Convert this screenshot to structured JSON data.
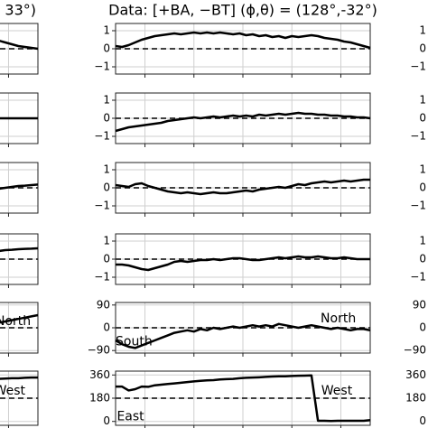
{
  "chart_data": [
    {
      "type": "line",
      "title": "33°)",
      "xlim": [
        0,
        39
      ],
      "xticks": [
        4.5,
        12,
        19.5,
        27,
        34.5
      ],
      "ylim": [
        -1.4,
        1.4
      ],
      "yticks": [
        1,
        0,
        {
          "value": -1,
          "label": "−1"
        }
      ],
      "grid": true,
      "reference": 0,
      "x": [
        33,
        34,
        35,
        36,
        37,
        38,
        39
      ],
      "values": [
        0.45,
        0.35,
        0.25,
        0.15,
        0.1,
        0.05,
        0
      ]
    },
    {
      "type": "line",
      "xlim": [
        0,
        39
      ],
      "xticks": [
        4.5,
        12,
        19.5,
        27,
        34.5
      ],
      "ylim": [
        -1.4,
        1.4
      ],
      "yticks": [
        1,
        0,
        {
          "value": -1,
          "label": "−1"
        }
      ],
      "grid": true,
      "reference": 0,
      "x": [
        33,
        34,
        35,
        36,
        37,
        38,
        39
      ],
      "values": [
        0,
        0,
        0,
        0,
        0,
        0,
        0
      ]
    },
    {
      "type": "line",
      "xlim": [
        0,
        39
      ],
      "xticks": [
        4.5,
        12,
        19.5,
        27,
        34.5
      ],
      "ylim": [
        -1.4,
        1.4
      ],
      "yticks": [
        1,
        0,
        {
          "value": -1,
          "label": "−1"
        }
      ],
      "grid": true,
      "reference": 0,
      "x": [
        33,
        34,
        35,
        36,
        37,
        38,
        39
      ],
      "values": [
        -0.05,
        0,
        0.05,
        0.1,
        0.12,
        0.15,
        0.18
      ]
    },
    {
      "type": "line",
      "xlim": [
        0,
        39
      ],
      "xticks": [
        4.5,
        12,
        19.5,
        27,
        34.5
      ],
      "ylim": [
        -1.4,
        1.4
      ],
      "yticks": [
        1,
        0,
        {
          "value": -1,
          "label": "−1"
        }
      ],
      "grid": true,
      "reference": 0,
      "x": [
        33,
        34,
        35,
        36,
        37,
        38,
        39
      ],
      "values": [
        0.45,
        0.5,
        0.52,
        0.55,
        0.57,
        0.58,
        0.6
      ]
    },
    {
      "type": "line",
      "xlim": [
        0,
        39
      ],
      "xticks": [
        4.5,
        12,
        19.5,
        27,
        34.5
      ],
      "ylim": [
        -100,
        100
      ],
      "yticks": [
        90,
        0,
        {
          "value": -90,
          "label": "−90"
        }
      ],
      "grid": true,
      "reference": 0,
      "x": [
        33,
        34,
        35,
        36,
        37,
        38,
        39
      ],
      "values": [
        20,
        25,
        30,
        35,
        40,
        45,
        50
      ],
      "annotations": [
        {
          "text": "North",
          "x": 32.5,
          "y": 25
        }
      ]
    },
    {
      "type": "line",
      "xlim": [
        0,
        39
      ],
      "xticks": [
        4.5,
        12,
        19.5,
        27,
        34.5
      ],
      "ylim": [
        -30,
        390
      ],
      "yticks": [
        360,
        180,
        0
      ],
      "grid": true,
      "reference": 180,
      "x": [
        33,
        34,
        35,
        36,
        37,
        38,
        39
      ],
      "values": [
        330,
        332,
        335,
        335,
        338,
        340,
        340
      ],
      "annotations": [
        {
          "text": "West",
          "x": 32.3,
          "y": 235
        }
      ]
    },
    {
      "type": "line",
      "title": "Data: [+BA, −BT] (ϕ,θ) = (128°,-32°)",
      "xlim": [
        0,
        39
      ],
      "xticks": [
        4.5,
        12,
        19.5,
        27,
        34.5
      ],
      "ylim": [
        -1.4,
        1.4
      ],
      "yticks": [
        1,
        0,
        {
          "value": -1,
          "label": "−1"
        }
      ],
      "grid": true,
      "reference": 0,
      "values": [
        0.15,
        0.1,
        0.2,
        0.35,
        0.5,
        0.6,
        0.7,
        0.75,
        0.8,
        0.85,
        0.8,
        0.85,
        0.9,
        0.85,
        0.9,
        0.85,
        0.9,
        0.85,
        0.8,
        0.85,
        0.75,
        0.8,
        0.7,
        0.75,
        0.65,
        0.7,
        0.6,
        0.7,
        0.65,
        0.7,
        0.75,
        0.7,
        0.6,
        0.55,
        0.5,
        0.4,
        0.35,
        0.25,
        0.15,
        0.05
      ]
    },
    {
      "type": "line",
      "xlim": [
        0,
        39
      ],
      "xticks": [
        4.5,
        12,
        19.5,
        27,
        34.5
      ],
      "ylim": [
        -1.4,
        1.4
      ],
      "yticks": [
        1,
        0,
        {
          "value": -1,
          "label": "−1"
        }
      ],
      "grid": true,
      "reference": 0,
      "values": [
        -0.7,
        -0.6,
        -0.5,
        -0.45,
        -0.4,
        -0.35,
        -0.3,
        -0.25,
        -0.15,
        -0.1,
        -0.05,
        0,
        0.05,
        0,
        0.05,
        0.1,
        0.05,
        0.1,
        0.15,
        0.1,
        0.15,
        0.1,
        0.2,
        0.15,
        0.2,
        0.25,
        0.2,
        0.25,
        0.3,
        0.25,
        0.25,
        0.2,
        0.2,
        0.15,
        0.15,
        0.1,
        0.1,
        0.05,
        0.05,
        0
      ]
    },
    {
      "type": "line",
      "xlim": [
        0,
        39
      ],
      "xticks": [
        4.5,
        12,
        19.5,
        27,
        34.5
      ],
      "ylim": [
        -1.4,
        1.4
      ],
      "yticks": [
        1,
        0,
        {
          "value": -1,
          "label": "−1"
        }
      ],
      "grid": true,
      "reference": 0,
      "values": [
        0.15,
        0.1,
        0.05,
        0.2,
        0.25,
        0.1,
        0,
        -0.1,
        -0.2,
        -0.25,
        -0.3,
        -0.25,
        -0.3,
        -0.35,
        -0.3,
        -0.25,
        -0.3,
        -0.3,
        -0.25,
        -0.2,
        -0.15,
        -0.2,
        -0.1,
        -0.05,
        0,
        0.05,
        0,
        0.1,
        0.2,
        0.15,
        0.25,
        0.3,
        0.35,
        0.3,
        0.35,
        0.4,
        0.35,
        0.4,
        0.45,
        0.45
      ]
    },
    {
      "type": "line",
      "xlim": [
        0,
        39
      ],
      "xticks": [
        4.5,
        12,
        19.5,
        27,
        34.5
      ],
      "ylim": [
        -1.4,
        1.4
      ],
      "yticks": [
        1,
        0,
        {
          "value": -1,
          "label": "−1"
        }
      ],
      "grid": true,
      "reference": 0,
      "values": [
        -0.3,
        -0.3,
        -0.35,
        -0.45,
        -0.55,
        -0.6,
        -0.5,
        -0.4,
        -0.3,
        -0.15,
        -0.1,
        -0.15,
        -0.1,
        -0.05,
        -0.05,
        0,
        -0.05,
        0,
        0.05,
        0.05,
        0,
        -0.05,
        -0.05,
        0,
        0.05,
        0.1,
        0.05,
        0.1,
        0.15,
        0.1,
        0.1,
        0.15,
        0.1,
        0.05,
        0.05,
        0.1,
        0.05,
        0,
        0,
        0
      ]
    },
    {
      "type": "line",
      "xlim": [
        0,
        39
      ],
      "xticks": [
        4.5,
        12,
        19.5,
        27,
        34.5
      ],
      "ylim": [
        -100,
        100
      ],
      "yticks": [
        90,
        0,
        {
          "value": -90,
          "label": "−90"
        }
      ],
      "grid": true,
      "reference": 0,
      "values": [
        -50,
        -65,
        -75,
        -80,
        -70,
        -60,
        -50,
        -40,
        -30,
        -20,
        -15,
        -10,
        -15,
        -5,
        -10,
        0,
        -5,
        0,
        5,
        0,
        5,
        10,
        5,
        10,
        5,
        15,
        10,
        5,
        0,
        5,
        10,
        5,
        0,
        -5,
        0,
        -5,
        -10,
        -5,
        -5,
        -10
      ],
      "annotations": [
        {
          "text": "North",
          "x": 31.4,
          "y": 35
        },
        {
          "text": "South",
          "x": 0,
          "y": -55
        }
      ]
    },
    {
      "type": "line",
      "xlim": [
        0,
        39
      ],
      "xticks": [
        4.5,
        12,
        19.5,
        27,
        34.5
      ],
      "ylim": [
        -30,
        390
      ],
      "yticks": [
        360,
        180,
        0
      ],
      "grid": true,
      "reference": 180,
      "values": [
        270,
        270,
        240,
        250,
        270,
        268,
        280,
        285,
        290,
        295,
        300,
        305,
        310,
        315,
        318,
        320,
        325,
        328,
        330,
        335,
        338,
        340,
        342,
        345,
        348,
        350,
        350,
        352,
        354,
        355,
        357,
        5,
        5,
        3,
        5,
        5,
        5,
        5,
        5,
        10
      ],
      "annotations": [
        {
          "text": "West",
          "x": 31.5,
          "y": 235
        },
        {
          "text": "East",
          "x": 0.2,
          "y": 35
        }
      ]
    },
    {
      "type": "line",
      "xlim": [
        0,
        39
      ],
      "ylim": [
        -1.4,
        1.4
      ],
      "yticks": [
        1,
        0,
        {
          "value": -1,
          "label": "−1"
        }
      ]
    },
    {
      "type": "line",
      "xlim": [
        0,
        39
      ],
      "ylim": [
        -1.4,
        1.4
      ],
      "yticks": [
        1,
        0,
        {
          "value": -1,
          "label": "−1"
        }
      ]
    },
    {
      "type": "line",
      "xlim": [
        0,
        39
      ],
      "ylim": [
        -1.4,
        1.4
      ],
      "yticks": [
        1,
        0,
        {
          "value": -1,
          "label": "−1"
        }
      ]
    },
    {
      "type": "line",
      "xlim": [
        0,
        39
      ],
      "ylim": [
        -1.4,
        1.4
      ],
      "yticks": [
        1,
        0,
        {
          "value": -1,
          "label": "−1"
        }
      ]
    },
    {
      "type": "line",
      "xlim": [
        0,
        39
      ],
      "ylim": [
        -100,
        100
      ],
      "yticks": [
        90,
        0,
        {
          "value": -90,
          "label": "−90"
        }
      ]
    },
    {
      "type": "line",
      "xlim": [
        0,
        39
      ],
      "ylim": [
        -30,
        390
      ],
      "yticks": [
        360,
        180,
        0
      ]
    }
  ]
}
